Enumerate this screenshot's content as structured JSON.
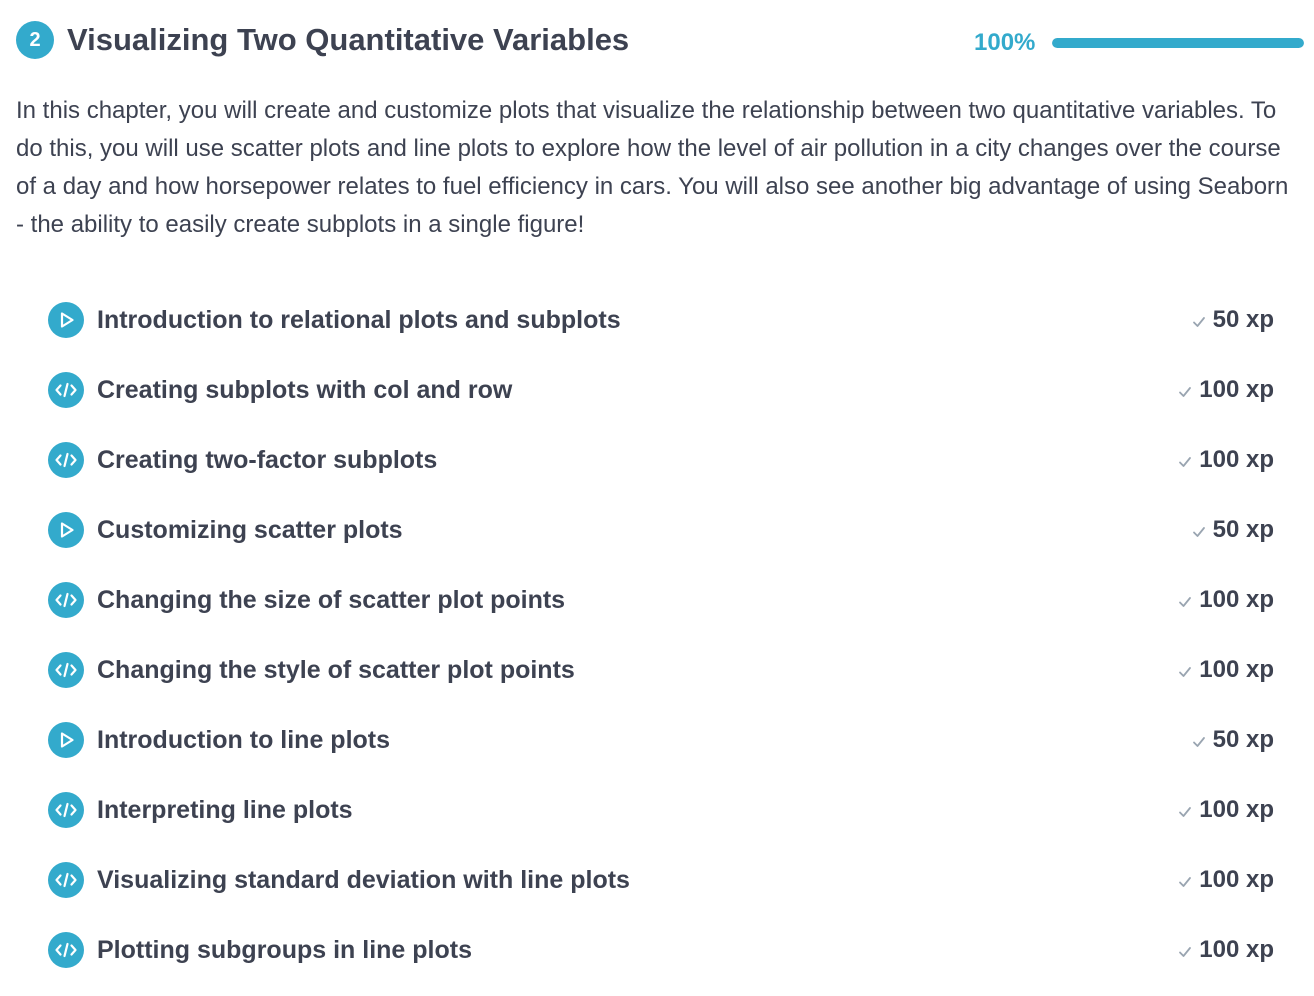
{
  "chapter": {
    "number": "2",
    "title": "Visualizing Two Quantitative Variables",
    "progress_label": "100%",
    "progress": 1.0,
    "description": "In this chapter, you will create and customize plots that visualize the relationship between two quantitative variables. To do this, you will use scatter plots and line plots to explore how the level of air pollution in a city changes over the course of a day and how horsepower relates to fuel efficiency in cars. You will also see another big advantage of using Seaborn - the ability to easily create subplots in a single figure!"
  },
  "colors": {
    "accent": "#33aacc",
    "text": "#3d4251",
    "check": "#9aa5b1",
    "track": "#e3e7ea"
  },
  "exercises": [
    {
      "type": "video",
      "icon": "play-icon",
      "title": "Introduction to relational plots and subplots",
      "xp": "50 xp",
      "completed": true
    },
    {
      "type": "code",
      "icon": "code-icon",
      "title": "Creating subplots with col and row",
      "xp": "100 xp",
      "completed": true
    },
    {
      "type": "code",
      "icon": "code-icon",
      "title": "Creating two-factor subplots",
      "xp": "100 xp",
      "completed": true
    },
    {
      "type": "video",
      "icon": "play-icon",
      "title": "Customizing scatter plots",
      "xp": "50 xp",
      "completed": true
    },
    {
      "type": "code",
      "icon": "code-icon",
      "title": "Changing the size of scatter plot points",
      "xp": "100 xp",
      "completed": true
    },
    {
      "type": "code",
      "icon": "code-icon",
      "title": "Changing the style of scatter plot points",
      "xp": "100 xp",
      "completed": true
    },
    {
      "type": "video",
      "icon": "play-icon",
      "title": "Introduction to line plots",
      "xp": "50 xp",
      "completed": true
    },
    {
      "type": "code",
      "icon": "code-icon",
      "title": "Interpreting line plots",
      "xp": "100 xp",
      "completed": true
    },
    {
      "type": "code",
      "icon": "code-icon",
      "title": "Visualizing standard deviation with line plots",
      "xp": "100 xp",
      "completed": true
    },
    {
      "type": "code",
      "icon": "code-icon",
      "title": "Plotting subgroups in line plots",
      "xp": "100 xp",
      "completed": true
    }
  ]
}
